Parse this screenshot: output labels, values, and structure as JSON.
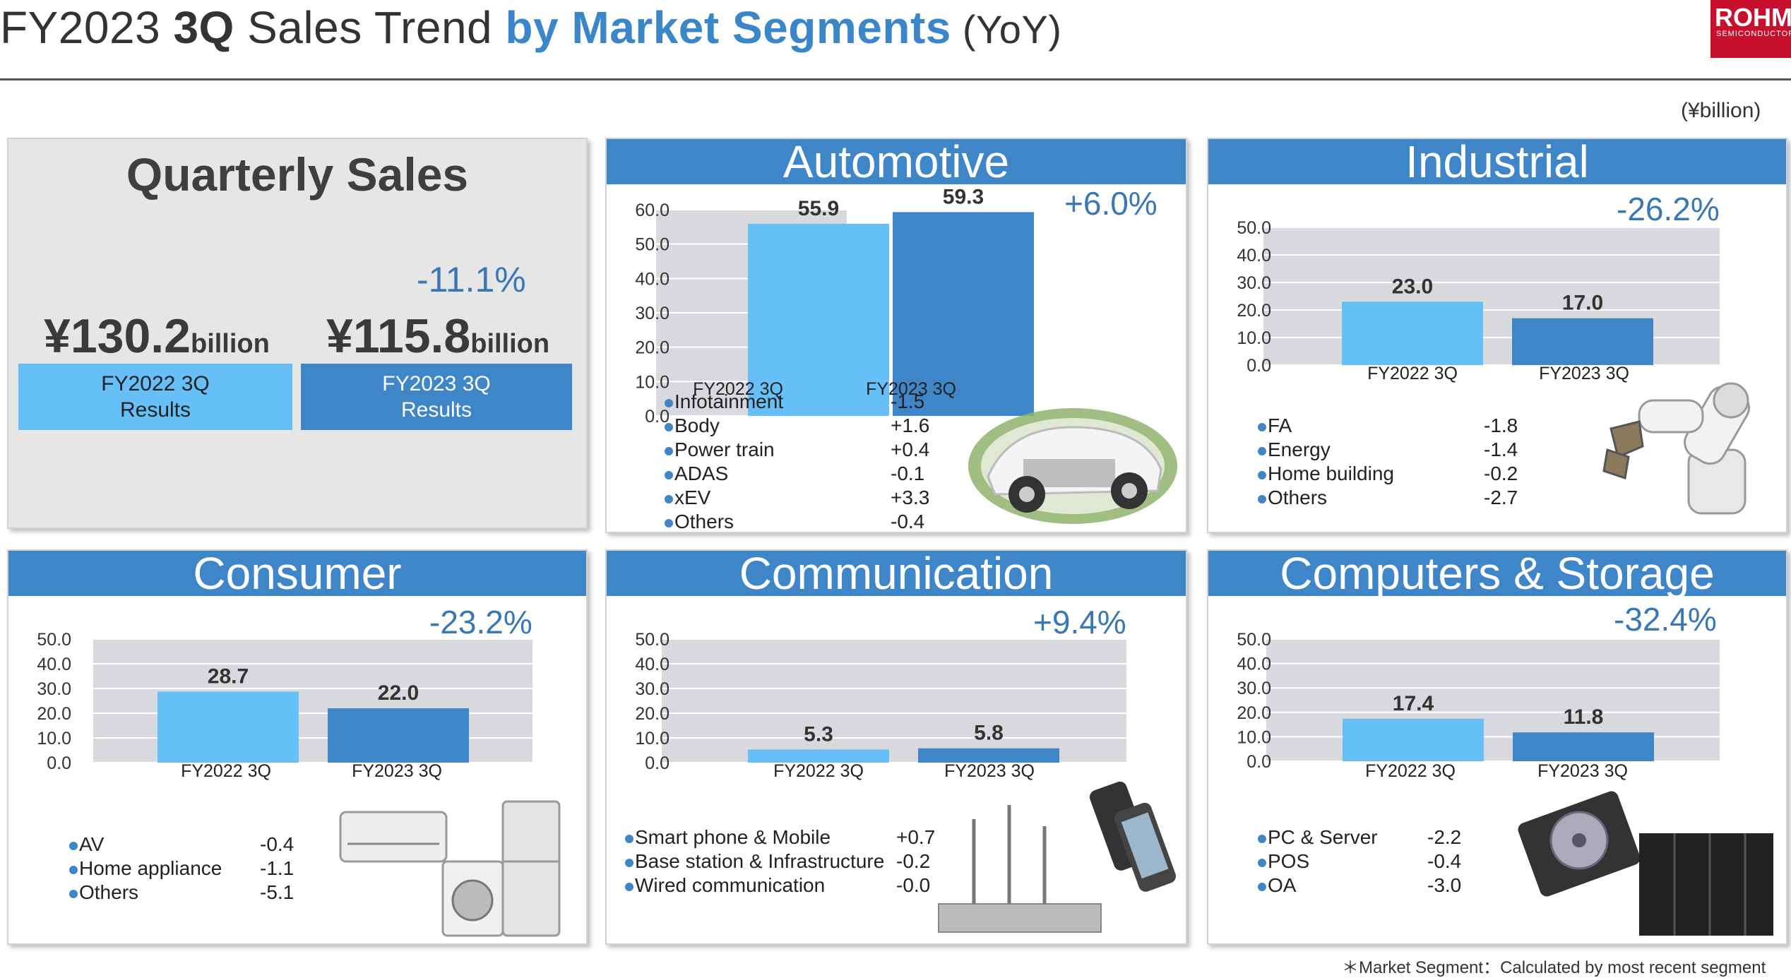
{
  "header": {
    "title_part1": "FY2023 ",
    "title_part2": "3Q",
    "title_part3": " Sales Trend ",
    "title_part4": "by Market Segments",
    "title_part5": " (YoY)",
    "logo_main": "ROHM",
    "logo_sub": "SEMICONDUCTOR",
    "unit": "(¥billion)"
  },
  "footnote": "＊Market Segment：Calculated by most recent segment",
  "colors": {
    "accent": "#3f86c8",
    "bar_light": "#66bff6",
    "bar_dark": "#3f86c8",
    "pct": "#3a77b5"
  },
  "quarterly": {
    "title": "Quarterly Sales",
    "change": "-11.1%",
    "prev_amount": "¥130.2",
    "prev_unit": "billion",
    "prev_label_1": "FY2022 3Q",
    "prev_label_2": "Results",
    "curr_amount": "¥115.8",
    "curr_unit": "billion",
    "curr_label_1": "FY2023 3Q",
    "curr_label_2": "Results"
  },
  "segments": {
    "automotive": {
      "title": "Automotive",
      "change": "+6.0%",
      "items": [
        {
          "name": "Infotainment",
          "value": "-1.5"
        },
        {
          "name": "Body",
          "value": "+1.6"
        },
        {
          "name": "Power train",
          "value": "+0.4"
        },
        {
          "name": "ADAS",
          "value": "-0.1"
        },
        {
          "name": "xEV",
          "value": "+3.3"
        },
        {
          "name": "Others",
          "value": "-0.4"
        }
      ]
    },
    "industrial": {
      "title": "Industrial",
      "change": "-26.2%",
      "items": [
        {
          "name": "FA",
          "value": "-1.8"
        },
        {
          "name": "Energy",
          "value": "-1.4"
        },
        {
          "name": "Home building",
          "value": "-0.2"
        },
        {
          "name": "Others",
          "value": "-2.7"
        }
      ]
    },
    "consumer": {
      "title": "Consumer",
      "change": "-23.2%",
      "items": [
        {
          "name": "AV",
          "value": "-0.4"
        },
        {
          "name": "Home appliance",
          "value": "-1.1"
        },
        {
          "name": "Others",
          "value": "-5.1"
        }
      ]
    },
    "communication": {
      "title": "Communication",
      "change": "+9.4%",
      "items": [
        {
          "name": "Smart phone & Mobile",
          "value": "+0.7"
        },
        {
          "name": "Base station & Infrastructure",
          "value": "-0.2"
        },
        {
          "name": "Wired communication",
          "value": "-0.0"
        }
      ]
    },
    "computers": {
      "title": "Computers & Storage",
      "change": "-32.4%",
      "items": [
        {
          "name": "PC & Server",
          "value": "-2.2"
        },
        {
          "name": "POS",
          "value": "-0.4"
        },
        {
          "name": "OA",
          "value": "-3.0"
        }
      ]
    }
  },
  "chart_data": [
    {
      "id": "automotive",
      "type": "bar",
      "categories": [
        "FY2022 3Q",
        "FY2023 3Q"
      ],
      "values": [
        55.9,
        59.3
      ],
      "value_labels": [
        "55.9",
        "59.3"
      ],
      "ylim": [
        0,
        60
      ],
      "yticks": [
        "0.0",
        "10.0",
        "20.0",
        "30.0",
        "40.0",
        "50.0",
        "60.0"
      ],
      "grid": true
    },
    {
      "id": "industrial",
      "type": "bar",
      "categories": [
        "FY2022 3Q",
        "FY2023 3Q"
      ],
      "values": [
        23.0,
        17.0
      ],
      "value_labels": [
        "23.0",
        "17.0"
      ],
      "ylim": [
        0,
        50
      ],
      "yticks": [
        "0.0",
        "10.0",
        "20.0",
        "30.0",
        "40.0",
        "50.0"
      ],
      "grid": true
    },
    {
      "id": "consumer",
      "type": "bar",
      "categories": [
        "FY2022 3Q",
        "FY2023 3Q"
      ],
      "values": [
        28.7,
        22.0
      ],
      "value_labels": [
        "28.7",
        "22.0"
      ],
      "ylim": [
        0,
        50
      ],
      "yticks": [
        "0.0",
        "10.0",
        "20.0",
        "30.0",
        "40.0",
        "50.0"
      ],
      "grid": true
    },
    {
      "id": "communication",
      "type": "bar",
      "categories": [
        "FY2022 3Q",
        "FY2023 3Q"
      ],
      "values": [
        5.3,
        5.8
      ],
      "value_labels": [
        "5.3",
        "5.8"
      ],
      "ylim": [
        0,
        50
      ],
      "yticks": [
        "0.0",
        "10.0",
        "20.0",
        "30.0",
        "40.0",
        "50.0"
      ],
      "grid": true
    },
    {
      "id": "computers",
      "type": "bar",
      "categories": [
        "FY2022 3Q",
        "FY2023 3Q"
      ],
      "values": [
        17.4,
        11.8
      ],
      "value_labels": [
        "17.4",
        "11.8"
      ],
      "ylim": [
        0,
        50
      ],
      "yticks": [
        "0.0",
        "10.0",
        "20.0",
        "30.0",
        "40.0",
        "50.0"
      ],
      "grid": true
    }
  ]
}
